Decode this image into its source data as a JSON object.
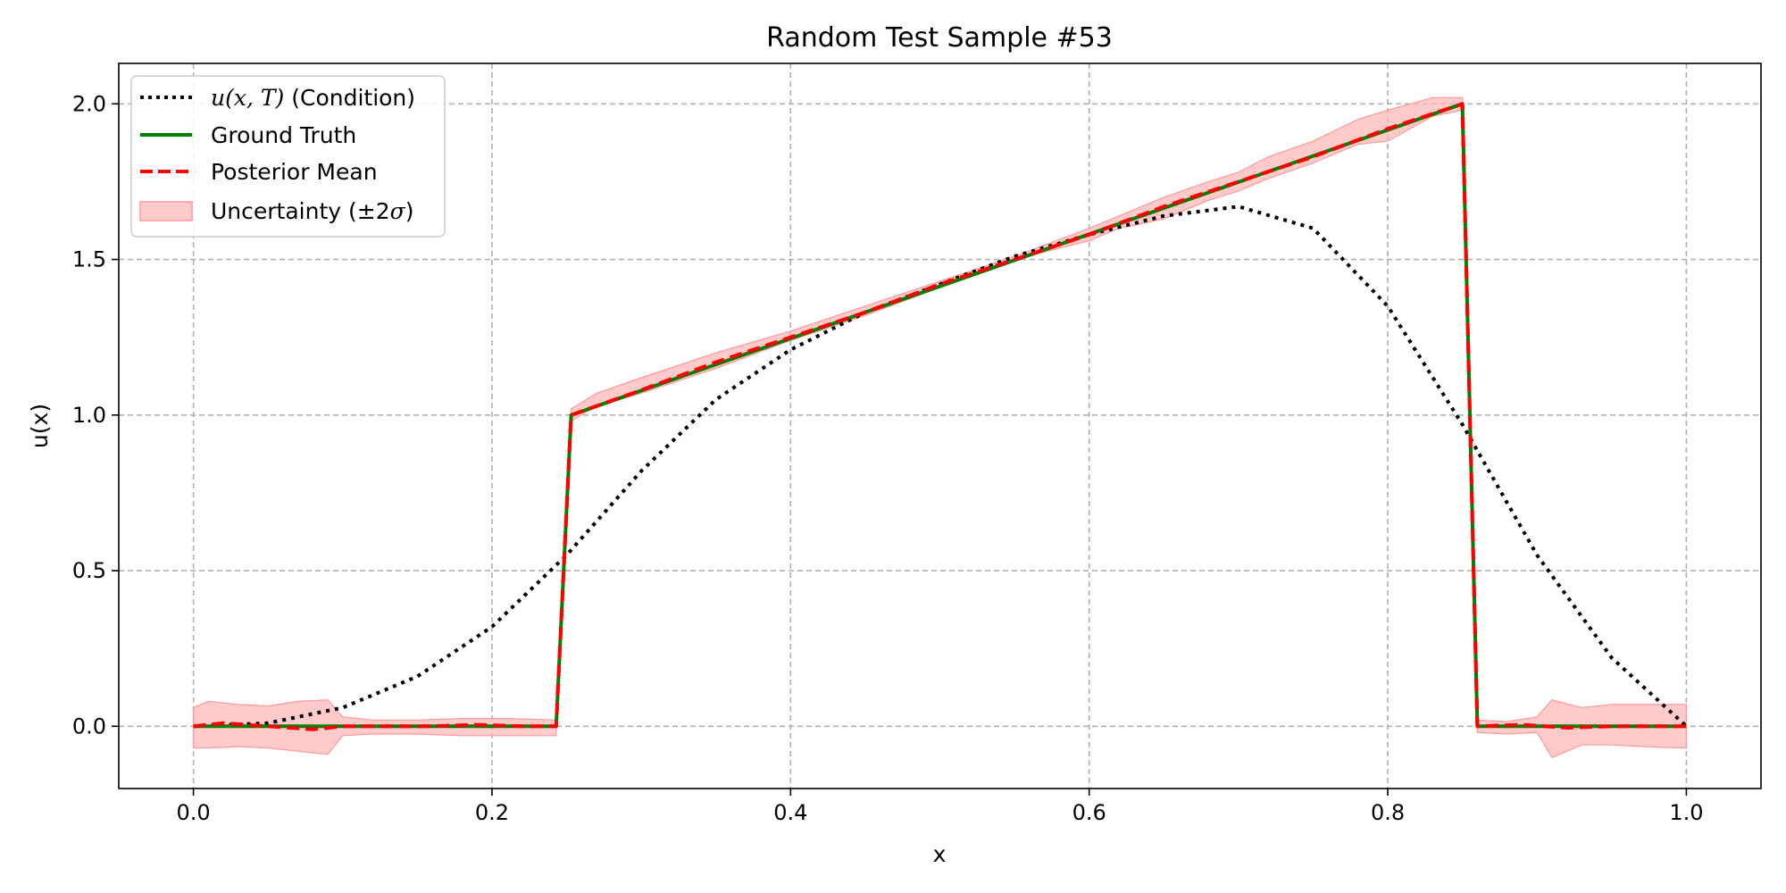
{
  "chart_data": {
    "type": "line",
    "title": "Random Test Sample #53",
    "xlabel": "x",
    "ylabel": "u(x)",
    "xlim": [
      -0.05,
      1.05
    ],
    "ylim": [
      -0.2,
      2.13
    ],
    "xticks": [
      0.0,
      0.2,
      0.4,
      0.6,
      0.8,
      1.0
    ],
    "xtick_labels": [
      "0.0",
      "0.2",
      "0.4",
      "0.6",
      "0.8",
      "1.0"
    ],
    "yticks": [
      0.0,
      0.5,
      1.0,
      1.5,
      2.0
    ],
    "ytick_labels": [
      "0.0",
      "0.5",
      "1.0",
      "1.5",
      "2.0"
    ],
    "grid": true,
    "legend_position": "top-left",
    "legend": {
      "condition_math": "u(x, T)",
      "condition_suffix": " (Condition)",
      "ground_truth": "Ground Truth",
      "posterior_mean": "Posterior Mean",
      "uncertainty_prefix": "Uncertainty (±2",
      "uncertainty_sigma": "σ",
      "uncertainty_suffix": ")"
    },
    "colors": {
      "condition": "#000000",
      "ground_truth": "#008000",
      "posterior_mean": "#ff0000",
      "uncertainty_fill": "#ffb3b3",
      "grid": "#b0b0b0"
    },
    "series": [
      {
        "name": "u(x, T) (Condition)",
        "style": "dotted",
        "x": [
          0.0,
          0.05,
          0.1,
          0.15,
          0.2,
          0.25,
          0.3,
          0.35,
          0.4,
          0.45,
          0.5,
          0.55,
          0.6,
          0.65,
          0.7,
          0.75,
          0.8,
          0.85,
          0.9,
          0.95,
          1.0
        ],
        "y": [
          0.0,
          0.01,
          0.06,
          0.16,
          0.32,
          0.55,
          0.82,
          1.05,
          1.21,
          1.33,
          1.42,
          1.51,
          1.58,
          1.64,
          1.67,
          1.6,
          1.35,
          0.97,
          0.55,
          0.22,
          0.0
        ]
      },
      {
        "name": "Ground Truth",
        "style": "solid",
        "x": [
          0.0,
          0.243,
          0.253,
          0.85,
          0.86,
          1.0
        ],
        "y": [
          0.0,
          0.0,
          1.0,
          2.0,
          0.0,
          0.0
        ]
      },
      {
        "name": "Posterior Mean",
        "style": "dashed",
        "x": [
          0.0,
          0.02,
          0.05,
          0.08,
          0.1,
          0.13,
          0.16,
          0.19,
          0.22,
          0.243,
          0.253,
          0.3,
          0.35,
          0.4,
          0.45,
          0.5,
          0.55,
          0.6,
          0.65,
          0.7,
          0.75,
          0.8,
          0.85,
          0.86,
          0.89,
          0.92,
          0.95,
          0.98,
          1.0
        ],
        "y": [
          0.0,
          0.01,
          0.0,
          -0.01,
          0.0,
          0.0,
          0.0,
          0.005,
          0.0,
          0.0,
          1.0,
          1.08,
          1.17,
          1.25,
          1.33,
          1.42,
          1.5,
          1.58,
          1.67,
          1.75,
          1.83,
          1.92,
          2.0,
          0.0,
          0.005,
          -0.005,
          0.0,
          0.0,
          0.0
        ]
      }
    ],
    "uncertainty_band": {
      "name": "Uncertainty (±2σ)",
      "x": [
        0.0,
        0.01,
        0.03,
        0.05,
        0.07,
        0.09,
        0.1,
        0.12,
        0.15,
        0.18,
        0.21,
        0.243,
        0.253,
        0.27,
        0.3,
        0.35,
        0.4,
        0.45,
        0.5,
        0.55,
        0.6,
        0.62,
        0.65,
        0.68,
        0.7,
        0.72,
        0.75,
        0.78,
        0.8,
        0.83,
        0.85,
        0.86,
        0.88,
        0.9,
        0.91,
        0.93,
        0.95,
        0.97,
        1.0
      ],
      "upper": [
        0.06,
        0.08,
        0.07,
        0.065,
        0.08,
        0.085,
        0.03,
        0.02,
        0.02,
        0.025,
        0.025,
        0.02,
        1.02,
        1.07,
        1.12,
        1.2,
        1.27,
        1.35,
        1.43,
        1.51,
        1.6,
        1.64,
        1.7,
        1.75,
        1.78,
        1.83,
        1.88,
        1.95,
        1.98,
        2.02,
        2.02,
        0.02,
        0.015,
        0.03,
        0.085,
        0.06,
        0.07,
        0.07,
        0.07
      ],
      "lower": [
        -0.07,
        -0.07,
        -0.065,
        -0.07,
        -0.08,
        -0.09,
        -0.03,
        -0.025,
        -0.025,
        -0.03,
        -0.03,
        -0.03,
        0.98,
        1.03,
        1.07,
        1.15,
        1.24,
        1.32,
        1.41,
        1.5,
        1.56,
        1.6,
        1.63,
        1.69,
        1.72,
        1.76,
        1.81,
        1.87,
        1.88,
        1.96,
        1.98,
        -0.02,
        -0.025,
        -0.02,
        -0.1,
        -0.06,
        -0.06,
        -0.065,
        -0.07
      ]
    }
  }
}
